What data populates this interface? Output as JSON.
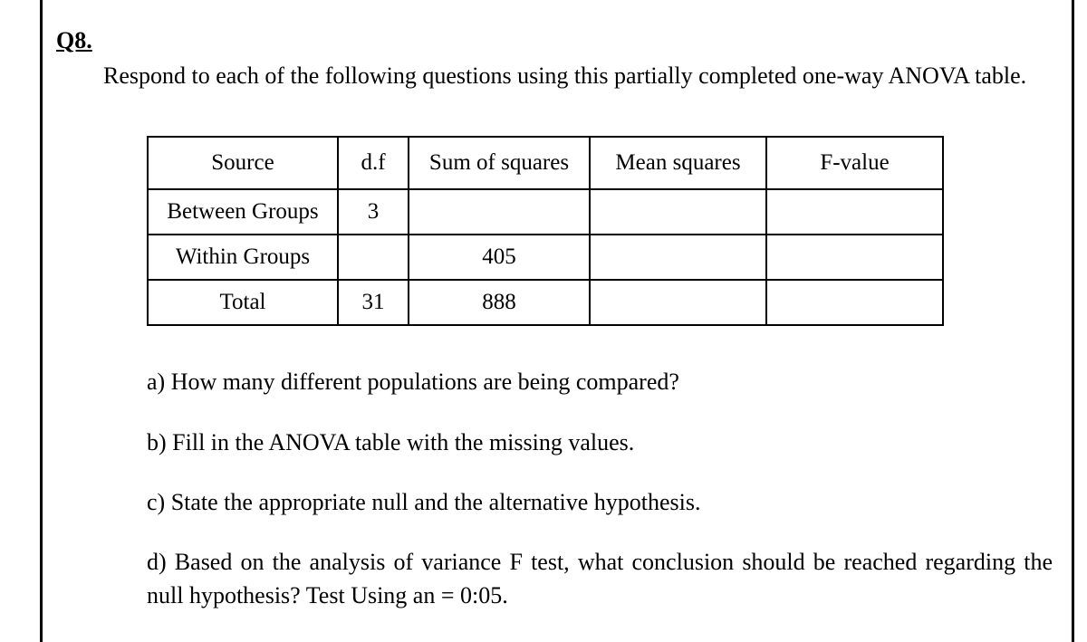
{
  "question_label": "Q8.",
  "intro_text": "Respond to each of the following questions using this partially completed one-way ANOVA table.",
  "table": {
    "headers": {
      "source": "Source",
      "df": "d.f",
      "ss": "Sum of squares",
      "ms": "Mean squares",
      "f": "F-value"
    },
    "rows": [
      {
        "source": "Between Groups",
        "df": "3",
        "ss": "",
        "ms": "",
        "f": ""
      },
      {
        "source": "Within Groups",
        "df": "",
        "ss": "405",
        "ms": "",
        "f": ""
      },
      {
        "source": "Total",
        "df": "31",
        "ss": "888",
        "ms": "",
        "f": ""
      }
    ]
  },
  "subquestions": {
    "a": "a) How many different populations are being compared?",
    "b": "b) Fill in the ANOVA table with the missing values.",
    "c": "c) State the appropriate null and the alternative hypothesis.",
    "d": "d) Based on the analysis of variance F test, what conclusion should be reached regarding the null hypothesis? Test Using an = 0:05."
  }
}
